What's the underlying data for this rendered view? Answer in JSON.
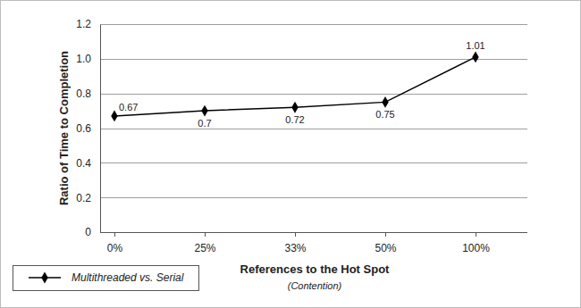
{
  "chart_data": {
    "type": "line",
    "x_label": "References to the Hot Spot",
    "x_label_note": "(Contention)",
    "y_label": "Ratio of Time to Completion",
    "categories": [
      "0%",
      "25%",
      "33%",
      "50%",
      "100%"
    ],
    "series": [
      {
        "name": "Multithreaded vs. Serial",
        "color": "#000000",
        "marker": "diamond",
        "values": [
          0.67,
          0.7,
          0.72,
          0.75,
          1.01
        ]
      }
    ],
    "ylim": [
      0,
      1.2
    ],
    "yticks": [
      0,
      0.2,
      0.4,
      0.6,
      0.8,
      {
        "value": 1,
        "label": "1.0"
      },
      1.2
    ],
    "grid": true,
    "data_labels": true,
    "legend": "bottom-left"
  }
}
